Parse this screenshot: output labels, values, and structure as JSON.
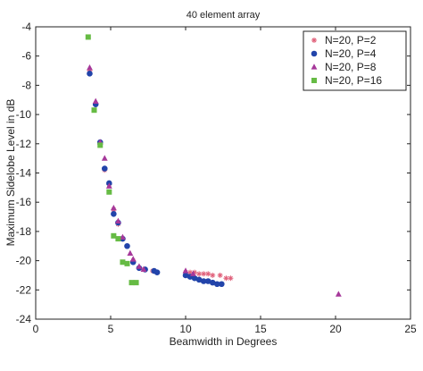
{
  "chart_data": {
    "type": "scatter",
    "title": "40 element array",
    "xlabel": "Beamwidth in Degrees",
    "ylabel": "Maximum Sidelobe Level in dB",
    "xlim": [
      0,
      25
    ],
    "ylim": [
      -24,
      -4
    ],
    "xticks": [
      0,
      5,
      10,
      15,
      20,
      25
    ],
    "yticks": [
      -24,
      -22,
      -20,
      -18,
      -16,
      -14,
      -12,
      -10,
      -8,
      -6,
      -4
    ],
    "grid": false,
    "legend_position": "top-right",
    "series": [
      {
        "name": "N=20, P=2",
        "marker": "asterisk",
        "color": "#e0607a",
        "points": [
          [
            3.6,
            -7.0
          ],
          [
            4.0,
            -9.3
          ],
          [
            4.3,
            -12.0
          ],
          [
            4.6,
            -13.8
          ],
          [
            4.9,
            -14.8
          ],
          [
            5.2,
            -16.5
          ],
          [
            5.5,
            -17.5
          ],
          [
            5.8,
            -18.5
          ],
          [
            6.1,
            -19.0
          ],
          [
            6.5,
            -20.0
          ],
          [
            6.9,
            -20.5
          ],
          [
            7.2,
            -20.6
          ],
          [
            7.8,
            -20.7
          ],
          [
            10.0,
            -20.8
          ],
          [
            10.3,
            -20.8
          ],
          [
            10.6,
            -20.8
          ],
          [
            10.9,
            -20.9
          ],
          [
            11.2,
            -20.9
          ],
          [
            11.5,
            -20.9
          ],
          [
            11.8,
            -21.0
          ],
          [
            12.3,
            -21.0
          ],
          [
            12.7,
            -21.2
          ],
          [
            13.0,
            -21.2
          ]
        ]
      },
      {
        "name": "N=20, P=4",
        "marker": "circle",
        "color": "#2244aa",
        "points": [
          [
            3.6,
            -7.2
          ],
          [
            4.0,
            -9.3
          ],
          [
            4.3,
            -11.9
          ],
          [
            4.6,
            -13.7
          ],
          [
            4.9,
            -14.7
          ],
          [
            5.2,
            -16.8
          ],
          [
            5.5,
            -17.4
          ],
          [
            5.8,
            -18.5
          ],
          [
            6.1,
            -19.0
          ],
          [
            6.5,
            -20.1
          ],
          [
            6.9,
            -20.5
          ],
          [
            7.3,
            -20.6
          ],
          [
            7.9,
            -20.7
          ],
          [
            8.1,
            -20.8
          ],
          [
            10.0,
            -21.0
          ],
          [
            10.3,
            -21.1
          ],
          [
            10.6,
            -21.2
          ],
          [
            10.9,
            -21.3
          ],
          [
            11.2,
            -21.4
          ],
          [
            11.5,
            -21.4
          ],
          [
            11.8,
            -21.5
          ],
          [
            12.1,
            -21.6
          ],
          [
            12.4,
            -21.6
          ]
        ]
      },
      {
        "name": "N=20, P=8",
        "marker": "triangle",
        "color": "#a6389a",
        "points": [
          [
            3.6,
            -6.8
          ],
          [
            4.0,
            -9.1
          ],
          [
            4.3,
            -11.9
          ],
          [
            4.6,
            -13.0
          ],
          [
            4.9,
            -14.9
          ],
          [
            5.2,
            -16.4
          ],
          [
            5.5,
            -17.3
          ],
          [
            5.8,
            -18.4
          ],
          [
            6.3,
            -19.5
          ],
          [
            6.5,
            -19.9
          ],
          [
            6.9,
            -20.4
          ],
          [
            7.2,
            -20.6
          ],
          [
            10.0,
            -20.7
          ],
          [
            10.5,
            -20.9
          ],
          [
            20.2,
            -22.3
          ]
        ]
      },
      {
        "name": "N=20, P=16",
        "marker": "square",
        "color": "#66bb44",
        "points": [
          [
            3.5,
            -4.7
          ],
          [
            3.9,
            -9.7
          ],
          [
            4.3,
            -12.1
          ],
          [
            4.9,
            -15.3
          ],
          [
            5.2,
            -18.3
          ],
          [
            5.5,
            -18.5
          ],
          [
            5.8,
            -20.1
          ],
          [
            6.1,
            -20.2
          ],
          [
            6.4,
            -21.5
          ],
          [
            6.7,
            -21.5
          ]
        ]
      }
    ]
  }
}
